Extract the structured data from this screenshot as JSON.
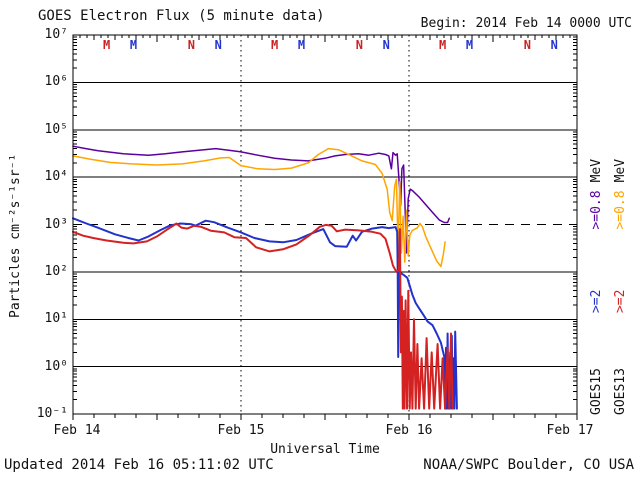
{
  "header": {
    "title": "GOES Electron Flux (5 minute data)",
    "begin": "Begin: 2014 Feb 14 0000 UTC"
  },
  "footer": {
    "updated": "Updated 2014 Feb 16 05:11:02 UTC",
    "source": "NOAA/SWPC Boulder, CO USA"
  },
  "legend": {
    "col1": {
      "satellite": "GOES15",
      "ge2": ">=2",
      "ge08": ">=0.8",
      "mev": "MeV"
    },
    "col2": {
      "satellite": "GOES13",
      "ge2": ">=2",
      "ge08": ">=0.8",
      "mev": "MeV"
    }
  },
  "colors": {
    "goes15_e08": "#5c00a0",
    "goes13_e08": "#ffa500",
    "goes15_e2": "#2232cc",
    "goes13_e2": "#d42222",
    "axis": "#000000",
    "background": "#ffffff",
    "marker_red": "#cc2222",
    "marker_blue": "#2232cc"
  },
  "chart_data": {
    "type": "line",
    "title": "GOES Electron Flux (5 minute data)",
    "x_axis": {
      "label": "Universal Time",
      "start": "2014 Feb 14 0000 UTC",
      "days": 3,
      "tick_labels": [
        "Feb 14",
        "Feb 15",
        "Feb 16",
        "Feb 17"
      ]
    },
    "y_axis": {
      "label": "Particles cm⁻²s⁻¹sr⁻¹",
      "scale": "log",
      "min": 0.1,
      "max": 10000000,
      "tick_values": [
        10000000,
        1000000,
        100000,
        10000,
        1000,
        100,
        10,
        1,
        0.1
      ],
      "tick_labels": [
        "10⁷",
        "10⁶",
        "10⁵",
        "10⁴",
        "10³",
        "10²",
        "10¹",
        "10⁰",
        "10⁻¹"
      ]
    },
    "threshold": {
      "value": 1000,
      "style": "dashed"
    },
    "day_gridlines": [
      1,
      2
    ],
    "markers": [
      {
        "t": 0.2,
        "label": "M",
        "color": "#cc2222"
      },
      {
        "t": 0.36,
        "label": "M",
        "color": "#2232cc"
      },
      {
        "t": 0.705,
        "label": "N",
        "color": "#cc2222"
      },
      {
        "t": 0.865,
        "label": "N",
        "color": "#2232cc"
      },
      {
        "t": 1.2,
        "label": "M",
        "color": "#cc2222"
      },
      {
        "t": 1.36,
        "label": "M",
        "color": "#2232cc"
      },
      {
        "t": 1.705,
        "label": "N",
        "color": "#cc2222"
      },
      {
        "t": 1.865,
        "label": "N",
        "color": "#2232cc"
      },
      {
        "t": 2.2,
        "label": "M",
        "color": "#cc2222"
      },
      {
        "t": 2.36,
        "label": "M",
        "color": "#2232cc"
      },
      {
        "t": 2.705,
        "label": "N",
        "color": "#cc2222"
      },
      {
        "t": 2.865,
        "label": "N",
        "color": "#2232cc"
      }
    ],
    "series": [
      {
        "name": "GOES15 >=0.8 MeV",
        "color": "#5c00a0",
        "width": 1.5,
        "points": [
          [
            0,
            45000
          ],
          [
            0.06,
            41000
          ],
          [
            0.15,
            36000
          ],
          [
            0.3,
            31000
          ],
          [
            0.45,
            29000
          ],
          [
            0.55,
            31000
          ],
          [
            0.65,
            34000
          ],
          [
            0.75,
            37000
          ],
          [
            0.85,
            40000
          ],
          [
            0.95,
            36000
          ],
          [
            1,
            34000
          ],
          [
            1.1,
            29000
          ],
          [
            1.2,
            25000
          ],
          [
            1.3,
            23000
          ],
          [
            1.4,
            22000
          ],
          [
            1.5,
            25000
          ],
          [
            1.56,
            28000
          ],
          [
            1.62,
            30000
          ],
          [
            1.7,
            31000
          ],
          [
            1.76,
            29000
          ],
          [
            1.82,
            32000
          ],
          [
            1.86,
            30000
          ],
          [
            1.88,
            28000
          ],
          [
            1.895,
            15000
          ],
          [
            1.905,
            33000
          ],
          [
            1.92,
            29000
          ],
          [
            1.93,
            31000
          ],
          [
            1.945,
            5000
          ],
          [
            1.95,
            2500
          ],
          [
            1.958,
            15000
          ],
          [
            1.968,
            18000
          ],
          [
            1.976,
            2500
          ],
          [
            1.985,
            250
          ],
          [
            1.995,
            3500
          ],
          [
            2.007,
            5600
          ],
          [
            2.02,
            5200
          ],
          [
            2.06,
            3800
          ],
          [
            2.1,
            2600
          ],
          [
            2.14,
            1800
          ],
          [
            2.18,
            1250
          ],
          [
            2.21,
            1100
          ],
          [
            2.23,
            1100
          ],
          [
            2.24,
            1350
          ]
        ]
      },
      {
        "name": "GOES13 >=0.8 MeV",
        "color": "#ffa500",
        "width": 1.5,
        "points": [
          [
            0,
            28000
          ],
          [
            0.1,
            24000
          ],
          [
            0.22,
            20500
          ],
          [
            0.35,
            19000
          ],
          [
            0.5,
            18000
          ],
          [
            0.65,
            19000
          ],
          [
            0.78,
            22000
          ],
          [
            0.88,
            25500
          ],
          [
            0.93,
            26000
          ],
          [
            1,
            17500
          ],
          [
            1.1,
            15000
          ],
          [
            1.2,
            14500
          ],
          [
            1.3,
            15500
          ],
          [
            1.4,
            20000
          ],
          [
            1.46,
            30000
          ],
          [
            1.52,
            40000
          ],
          [
            1.58,
            38000
          ],
          [
            1.65,
            29000
          ],
          [
            1.72,
            22000
          ],
          [
            1.8,
            18500
          ],
          [
            1.84,
            12000
          ],
          [
            1.87,
            5500
          ],
          [
            1.885,
            1800
          ],
          [
            1.9,
            1200
          ],
          [
            1.915,
            6500
          ],
          [
            1.925,
            9000
          ],
          [
            1.935,
            300
          ],
          [
            1.945,
            8000
          ],
          [
            1.955,
            250
          ],
          [
            1.965,
            1500
          ],
          [
            1.975,
            160
          ],
          [
            1.985,
            2000
          ],
          [
            1.995,
            220
          ],
          [
            2.005,
            600
          ],
          [
            2.02,
            750
          ],
          [
            2.05,
            850
          ],
          [
            2.065,
            1050
          ],
          [
            2.08,
            900
          ],
          [
            2.1,
            550
          ],
          [
            2.13,
            320
          ],
          [
            2.165,
            170
          ],
          [
            2.19,
            130
          ],
          [
            2.205,
            240
          ],
          [
            2.215,
            430
          ]
        ]
      },
      {
        "name": "GOES15 >=2 MeV",
        "color": "#2232cc",
        "width": 2,
        "points": [
          [
            0,
            1350
          ],
          [
            0.08,
            1050
          ],
          [
            0.15,
            850
          ],
          [
            0.25,
            620
          ],
          [
            0.33,
            520
          ],
          [
            0.39,
            460
          ],
          [
            0.45,
            560
          ],
          [
            0.52,
            760
          ],
          [
            0.58,
            960
          ],
          [
            0.64,
            1050
          ],
          [
            0.7,
            1020
          ],
          [
            0.73,
            950
          ],
          [
            0.79,
            1200
          ],
          [
            0.84,
            1120
          ],
          [
            0.92,
            860
          ],
          [
            1,
            680
          ],
          [
            1.08,
            520
          ],
          [
            1.17,
            440
          ],
          [
            1.25,
            420
          ],
          [
            1.33,
            470
          ],
          [
            1.42,
            650
          ],
          [
            1.49,
            800
          ],
          [
            1.53,
            420
          ],
          [
            1.56,
            350
          ],
          [
            1.63,
            340
          ],
          [
            1.665,
            580
          ],
          [
            1.685,
            460
          ],
          [
            1.72,
            700
          ],
          [
            1.78,
            820
          ],
          [
            1.84,
            880
          ],
          [
            1.88,
            840
          ],
          [
            1.92,
            880
          ],
          [
            1.93,
            700
          ],
          [
            1.933,
            105
          ],
          [
            1.936,
            1.6
          ],
          [
            1.939,
            105
          ],
          [
            1.95,
            95
          ],
          [
            1.97,
            85
          ],
          [
            1.99,
            75
          ],
          [
            2.005,
            50
          ],
          [
            2.02,
            33
          ],
          [
            2.04,
            22
          ],
          [
            2.06,
            17
          ],
          [
            2.085,
            12.5
          ],
          [
            2.11,
            9
          ],
          [
            2.14,
            7.5
          ],
          [
            2.165,
            5
          ],
          [
            2.19,
            3.2
          ],
          [
            2.21,
            1.6
          ],
          [
            2.215,
            0.13
          ],
          [
            2.22,
            2.5
          ],
          [
            2.225,
            0.13
          ],
          [
            2.23,
            5
          ],
          [
            2.235,
            0.13
          ],
          [
            2.245,
            2
          ],
          [
            2.25,
            0.13
          ],
          [
            2.255,
            4.5
          ],
          [
            2.26,
            0.13
          ],
          [
            2.265,
            1.5
          ],
          [
            2.27,
            0.13
          ],
          [
            2.275,
            5.5
          ],
          [
            2.285,
            0.13
          ]
        ]
      },
      {
        "name": "GOES13 >=2 MeV",
        "color": "#d42222",
        "width": 2,
        "points": [
          [
            0,
            700
          ],
          [
            0.06,
            580
          ],
          [
            0.12,
            520
          ],
          [
            0.2,
            460
          ],
          [
            0.3,
            410
          ],
          [
            0.36,
            400
          ],
          [
            0.44,
            440
          ],
          [
            0.5,
            560
          ],
          [
            0.56,
            780
          ],
          [
            0.6,
            960
          ],
          [
            0.615,
            1050
          ],
          [
            0.645,
            860
          ],
          [
            0.68,
            820
          ],
          [
            0.72,
            940
          ],
          [
            0.76,
            900
          ],
          [
            0.82,
            740
          ],
          [
            0.9,
            680
          ],
          [
            0.96,
            540
          ],
          [
            1.03,
            520
          ],
          [
            1.09,
            330
          ],
          [
            1.17,
            270
          ],
          [
            1.25,
            300
          ],
          [
            1.33,
            380
          ],
          [
            1.41,
            600
          ],
          [
            1.47,
            900
          ],
          [
            1.505,
            980
          ],
          [
            1.54,
            940
          ],
          [
            1.57,
            720
          ],
          [
            1.62,
            780
          ],
          [
            1.7,
            750
          ],
          [
            1.78,
            700
          ],
          [
            1.83,
            640
          ],
          [
            1.86,
            500
          ],
          [
            1.885,
            250
          ],
          [
            1.905,
            135
          ],
          [
            1.925,
            100
          ],
          [
            1.94,
            110
          ],
          [
            1.946,
            800
          ],
          [
            1.952,
            2
          ],
          [
            1.958,
            30
          ],
          [
            1.963,
            0.13
          ],
          [
            1.968,
            15
          ],
          [
            1.973,
            0.13
          ],
          [
            1.98,
            25
          ],
          [
            1.988,
            0.13
          ],
          [
            1.996,
            40
          ],
          [
            2.004,
            0.13
          ],
          [
            2.012,
            2
          ],
          [
            2.02,
            0.13
          ],
          [
            2.03,
            10
          ],
          [
            2.04,
            0.13
          ],
          [
            2.05,
            3
          ],
          [
            2.06,
            0.13
          ],
          [
            2.075,
            1.5
          ],
          [
            2.09,
            0.13
          ],
          [
            2.105,
            4
          ],
          [
            2.12,
            0.13
          ],
          [
            2.135,
            2
          ],
          [
            2.15,
            0.13
          ],
          [
            2.17,
            3
          ],
          [
            2.185,
            0.13
          ],
          [
            2.2,
            1.5
          ],
          [
            2.215,
            0.13
          ],
          [
            2.23,
            2.5
          ],
          [
            2.24,
            0.13
          ],
          [
            2.25,
            5
          ],
          [
            2.26,
            0.13
          ]
        ]
      }
    ]
  }
}
